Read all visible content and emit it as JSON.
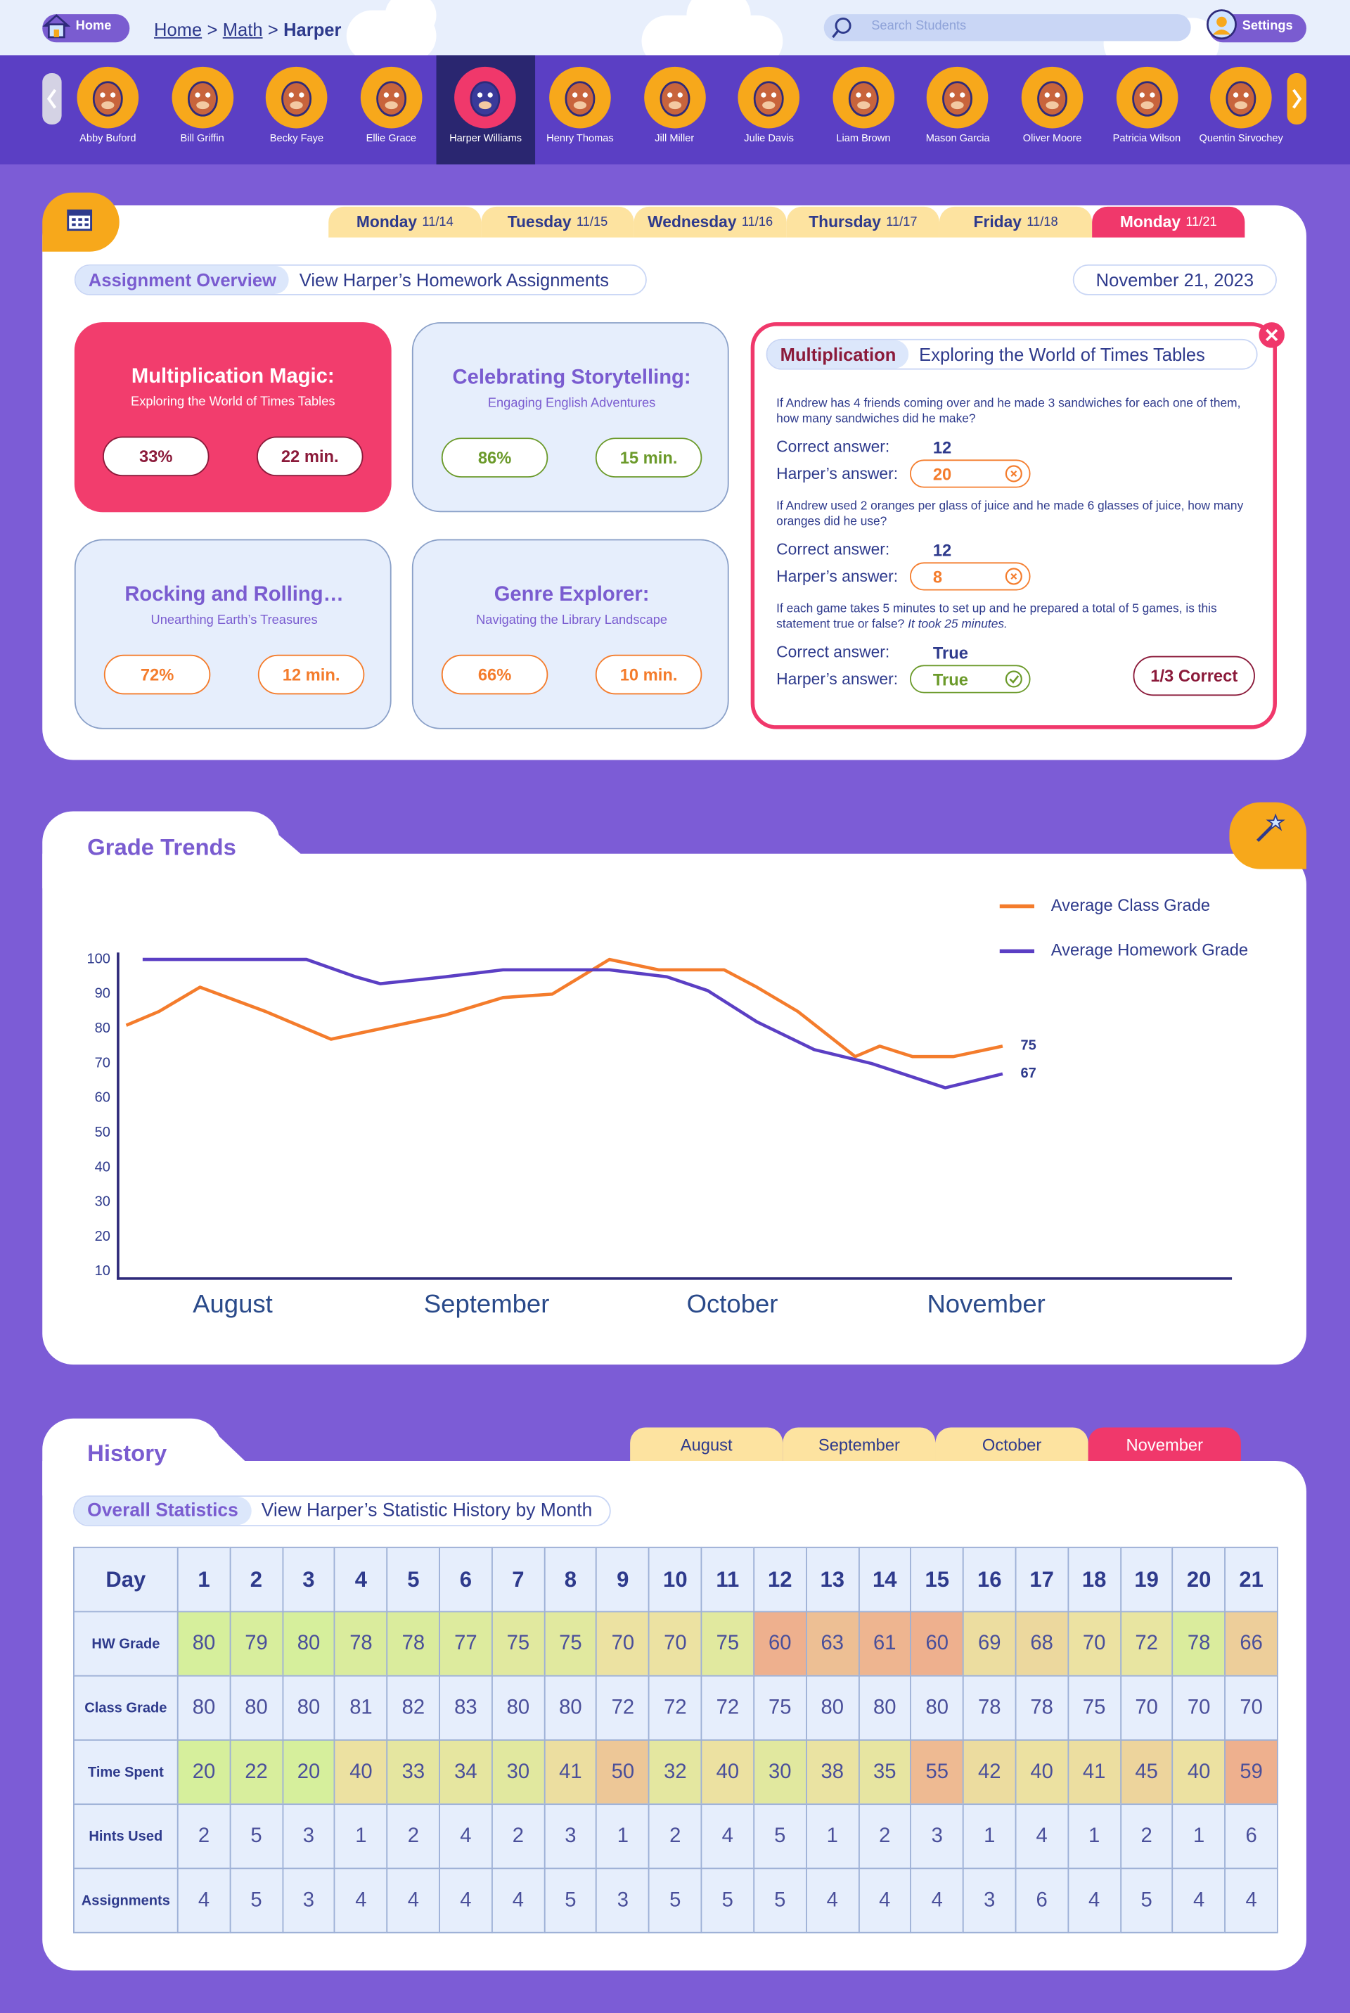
{
  "header": {
    "home": "Home",
    "breadcrumb": [
      "Home",
      "Math",
      "Harper"
    ],
    "separator": ">",
    "search_placeholder": "Search Students",
    "settings": "Settings"
  },
  "students": {
    "selected": 4,
    "names": [
      "Abby Buford",
      "Bill Griffin",
      "Becky Faye",
      "Ellie Grace",
      "Harper Williams",
      "Henry Thomas",
      "Jill Miller",
      "Julie Davis",
      "Liam Brown",
      "Mason Garcia",
      "Oliver Moore",
      "Patricia Wilson",
      "Quentin Sirvochey"
    ]
  },
  "assignments": {
    "days": [
      {
        "day": "Monday",
        "date": "11/14"
      },
      {
        "day": "Tuesday",
        "date": "11/15"
      },
      {
        "day": "Wednesday",
        "date": "11/16"
      },
      {
        "day": "Thursday",
        "date": "11/17"
      },
      {
        "day": "Friday",
        "date": "11/18"
      },
      {
        "day": "Monday",
        "date": "11/21"
      }
    ],
    "active_day": 5,
    "tab": "Assignment Overview",
    "subtitle": "View Harper’s Homework Assignments",
    "date": "November 21, 2023",
    "selected_card": 0,
    "cards": [
      {
        "title": "Multiplication Magic:",
        "subtitle": "Exploring the World of Times Tables",
        "score": "33%",
        "time": "22 min.",
        "color": "#f23d6d"
      },
      {
        "title": "Celebrating Storytelling:",
        "subtitle": "Engaging English Adventures",
        "score": "86%",
        "time": "15 min.",
        "color": "#6b9a2a"
      },
      {
        "title": "Rocking and Rolling…",
        "subtitle": "Unearthing Earth’s Treasures",
        "score": "72%",
        "time": "12 min.",
        "color": "#f47c2c"
      },
      {
        "title": "Genre Explorer:",
        "subtitle": "Navigating the Library Landscape",
        "score": "66%",
        "time": "10 min.",
        "color": "#f47c2c"
      }
    ],
    "detail": {
      "subject": "Multiplication",
      "title": "Exploring the World of Times Tables",
      "correct_label": "Correct answer:",
      "answer_label": "Harper’s answer:",
      "questions": [
        {
          "question": "If Andrew has 4 friends coming over and he made 3 sandwiches for each one of them, how many sandwiches did he make?",
          "correct": "12",
          "answer": "20",
          "is_correct": false
        },
        {
          "question": "If Andrew used 2 oranges per glass of juice and he made 6 glasses of juice, how many oranges did he use?",
          "correct": "12",
          "answer": "8",
          "is_correct": false
        },
        {
          "question": "If each game takes 5 minutes to set up and he prepared a total of 5 games, is this statement true or false?",
          "note": "It took 25 minutes.",
          "correct": "True",
          "answer": "True",
          "is_correct": true
        }
      ],
      "result": "1/3 Correct"
    }
  },
  "chart_data": {
    "type": "line",
    "title": "Grade Trends",
    "xlim": [
      1,
      137
    ],
    "xticks": [
      {
        "value": 15,
        "label": "August"
      },
      {
        "value": 46,
        "label": "September"
      },
      {
        "value": 76,
        "label": "October"
      },
      {
        "value": 107,
        "label": "November"
      }
    ],
    "ylim": [
      8,
      102
    ],
    "yticks": [
      10,
      20,
      30,
      40,
      50,
      60,
      70,
      80,
      90,
      100
    ],
    "grid": false,
    "legend": "top-right",
    "end_labels": true,
    "series": [
      {
        "name": "Average Class Grade",
        "color": "#f47c2c",
        "x": [
          2,
          6,
          11,
          19,
          27,
          33,
          41,
          48,
          54,
          61,
          67,
          75,
          79,
          84,
          91,
          94,
          98,
          103,
          109
        ],
        "values": [
          81,
          85,
          92,
          85,
          77,
          80,
          84,
          89,
          90,
          100,
          97,
          97,
          92,
          85,
          72,
          75,
          72,
          72,
          75
        ]
      },
      {
        "name": "Average Homework Grade",
        "color": "#5b3fc4",
        "x": [
          4,
          24,
          30,
          33,
          41,
          48,
          61,
          68,
          73,
          79,
          86,
          93,
          102,
          109
        ],
        "values": [
          100,
          100,
          95,
          93,
          95,
          97,
          97,
          95,
          91,
          82,
          74,
          70,
          63,
          67
        ]
      }
    ]
  },
  "history": {
    "title": "History",
    "months": [
      "August",
      "September",
      "October",
      "November"
    ],
    "active_month": 3,
    "tab": "Overall Statistics",
    "subtitle": "View Harper’s Statistic History by Month",
    "table": {
      "header": "Day",
      "days": [
        1,
        2,
        3,
        4,
        5,
        6,
        7,
        8,
        9,
        10,
        11,
        12,
        13,
        14,
        15,
        16,
        17,
        18,
        19,
        20,
        21
      ],
      "rows": [
        {
          "label": "HW Grade",
          "heat": "high-good",
          "values": [
            80,
            79,
            80,
            78,
            78,
            77,
            75,
            75,
            70,
            70,
            75,
            60,
            63,
            61,
            60,
            69,
            68,
            70,
            72,
            78,
            66
          ]
        },
        {
          "label": "Class Grade",
          "values": [
            80,
            80,
            80,
            81,
            82,
            83,
            80,
            80,
            72,
            72,
            72,
            75,
            80,
            80,
            80,
            78,
            78,
            75,
            70,
            70,
            70
          ]
        },
        {
          "label": "Time Spent",
          "heat": "low-good",
          "values": [
            20,
            22,
            20,
            40,
            33,
            34,
            30,
            41,
            50,
            32,
            40,
            30,
            38,
            35,
            55,
            42,
            40,
            41,
            45,
            40,
            59
          ]
        },
        {
          "label": "Hints Used",
          "values": [
            2,
            5,
            3,
            1,
            2,
            4,
            2,
            3,
            1,
            2,
            4,
            5,
            1,
            2,
            3,
            1,
            4,
            1,
            2,
            1,
            6
          ]
        },
        {
          "label": "Assignments",
          "values": [
            4,
            5,
            3,
            4,
            4,
            4,
            4,
            5,
            3,
            5,
            5,
            5,
            4,
            4,
            4,
            3,
            6,
            4,
            5,
            4,
            4
          ]
        }
      ]
    }
  }
}
